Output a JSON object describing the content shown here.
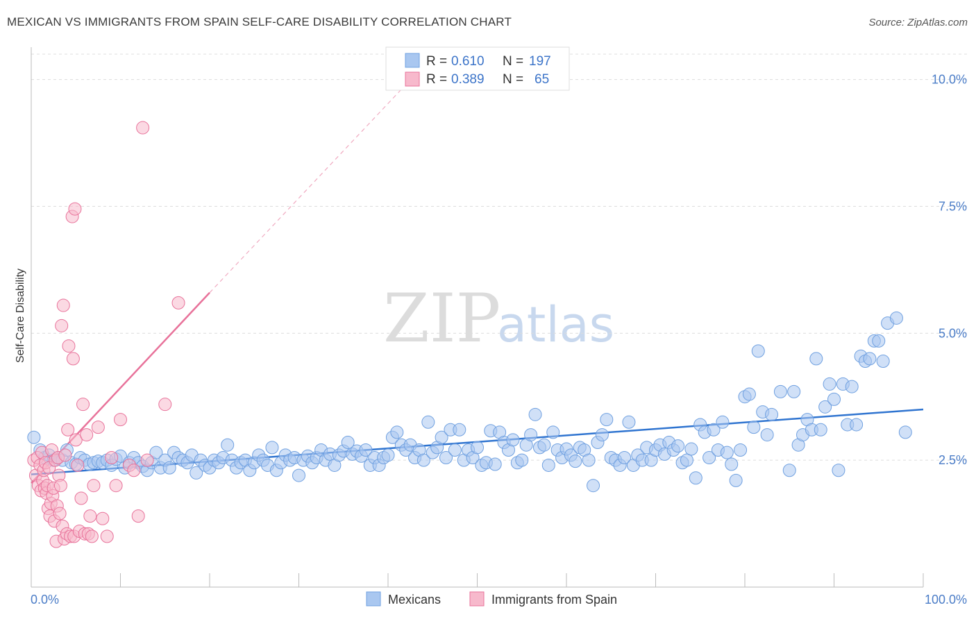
{
  "header": {
    "title": "MEXICAN VS IMMIGRANTS FROM SPAIN SELF-CARE DISABILITY CORRELATION CHART",
    "source": "Source: ZipAtlas.com"
  },
  "watermark": {
    "zip": "ZIP",
    "atlas": "atlas"
  },
  "legend_top": {
    "rows": [
      {
        "r_label": "R =",
        "r_value": "0.610",
        "n_label": "N =",
        "n_value": "197",
        "color": "#a9c7f0"
      },
      {
        "r_label": "R =",
        "r_value": "0.389",
        "n_label": "N =",
        "n_value": "65",
        "color": "#f7b9cc"
      }
    ]
  },
  "legend_bottom": [
    {
      "label": "Mexicans",
      "color": "#a9c7f0"
    },
    {
      "label": "Immigrants from Spain",
      "color": "#f7b9cc"
    }
  ],
  "chart_data": {
    "type": "scatter",
    "ylabel": "Self-Care Disability",
    "xlabel": "",
    "xlim": [
      0,
      100
    ],
    "ylim": [
      0,
      10.5
    ],
    "x_tick_labels": [
      "0.0%",
      "100.0%"
    ],
    "y_ticks": [
      2.5,
      5.0,
      7.5,
      10.0
    ],
    "y_tick_labels": [
      "2.5%",
      "5.0%",
      "7.5%",
      "10.0%"
    ],
    "grid": "horizontal dashed",
    "legend_placement": "top-center",
    "colors": {
      "mexicans": "#6fa0e0",
      "mexicans_fill": "#a9c7f0",
      "spain": "#e8729a",
      "spain_fill": "#f7b9cc",
      "trend_blue": "#2f74d0",
      "trend_pink": "#e8729a"
    },
    "series": [
      {
        "name": "Mexicans",
        "trend": {
          "x": [
            0,
            100
          ],
          "y": [
            2.22,
            3.5
          ]
        },
        "points": [
          [
            0.3,
            2.95
          ],
          [
            1.0,
            2.7
          ],
          [
            1.5,
            2.55
          ],
          [
            2.0,
            2.6
          ],
          [
            2.5,
            2.5
          ],
          [
            3.0,
            2.55
          ],
          [
            3.5,
            2.5
          ],
          [
            4.0,
            2.7
          ],
          [
            4.5,
            2.45
          ],
          [
            5.0,
            2.42
          ],
          [
            5.5,
            2.55
          ],
          [
            6.0,
            2.5
          ],
          [
            6.5,
            2.42
          ],
          [
            7.0,
            2.45
          ],
          [
            7.5,
            2.48
          ],
          [
            8.0,
            2.45
          ],
          [
            8.5,
            2.5
          ],
          [
            9.0,
            2.4
          ],
          [
            9.5,
            2.52
          ],
          [
            10.0,
            2.58
          ],
          [
            10.5,
            2.35
          ],
          [
            11.0,
            2.45
          ],
          [
            11.5,
            2.55
          ],
          [
            12.0,
            2.45
          ],
          [
            12.5,
            2.38
          ],
          [
            13.0,
            2.3
          ],
          [
            13.5,
            2.45
          ],
          [
            14.0,
            2.65
          ],
          [
            14.5,
            2.35
          ],
          [
            15.0,
            2.5
          ],
          [
            15.5,
            2.35
          ],
          [
            16.0,
            2.65
          ],
          [
            16.5,
            2.55
          ],
          [
            17.0,
            2.5
          ],
          [
            17.5,
            2.45
          ],
          [
            18.0,
            2.6
          ],
          [
            18.5,
            2.25
          ],
          [
            19.0,
            2.5
          ],
          [
            19.5,
            2.4
          ],
          [
            20.0,
            2.35
          ],
          [
            20.5,
            2.5
          ],
          [
            21.0,
            2.45
          ],
          [
            21.5,
            2.55
          ],
          [
            22.0,
            2.8
          ],
          [
            22.5,
            2.5
          ],
          [
            23.0,
            2.35
          ],
          [
            23.5,
            2.45
          ],
          [
            24.0,
            2.5
          ],
          [
            24.5,
            2.3
          ],
          [
            25.0,
            2.45
          ],
          [
            25.5,
            2.6
          ],
          [
            26.0,
            2.5
          ],
          [
            26.5,
            2.4
          ],
          [
            27.0,
            2.75
          ],
          [
            27.5,
            2.3
          ],
          [
            28.0,
            2.45
          ],
          [
            28.5,
            2.6
          ],
          [
            29.0,
            2.5
          ],
          [
            29.5,
            2.55
          ],
          [
            30.0,
            2.2
          ],
          [
            30.5,
            2.5
          ],
          [
            31.0,
            2.58
          ],
          [
            31.5,
            2.45
          ],
          [
            32.0,
            2.55
          ],
          [
            32.5,
            2.7
          ],
          [
            33.0,
            2.5
          ],
          [
            33.5,
            2.62
          ],
          [
            34.0,
            2.4
          ],
          [
            34.5,
            2.6
          ],
          [
            35.0,
            2.68
          ],
          [
            35.5,
            2.85
          ],
          [
            36.0,
            2.62
          ],
          [
            36.5,
            2.68
          ],
          [
            37.0,
            2.58
          ],
          [
            37.5,
            2.7
          ],
          [
            38.0,
            2.4
          ],
          [
            38.5,
            2.55
          ],
          [
            39.0,
            2.4
          ],
          [
            39.5,
            2.55
          ],
          [
            40.0,
            2.6
          ],
          [
            40.5,
            2.95
          ],
          [
            41.0,
            3.05
          ],
          [
            41.5,
            2.8
          ],
          [
            42.0,
            2.7
          ],
          [
            42.5,
            2.8
          ],
          [
            43.0,
            2.55
          ],
          [
            43.5,
            2.7
          ],
          [
            44.0,
            2.5
          ],
          [
            44.5,
            3.25
          ],
          [
            45.0,
            2.65
          ],
          [
            45.5,
            2.75
          ],
          [
            46.0,
            2.95
          ],
          [
            46.5,
            2.55
          ],
          [
            47.0,
            3.1
          ],
          [
            47.5,
            2.7
          ],
          [
            48.0,
            3.1
          ],
          [
            48.5,
            2.5
          ],
          [
            49.0,
            2.7
          ],
          [
            49.5,
            2.55
          ],
          [
            50.0,
            2.75
          ],
          [
            50.5,
            2.4
          ],
          [
            51.0,
            2.45
          ],
          [
            51.5,
            3.08
          ],
          [
            52.0,
            2.42
          ],
          [
            52.5,
            3.05
          ],
          [
            53.0,
            2.85
          ],
          [
            53.5,
            2.7
          ],
          [
            54.0,
            2.9
          ],
          [
            54.5,
            2.45
          ],
          [
            55.0,
            2.5
          ],
          [
            55.5,
            2.8
          ],
          [
            56.0,
            3.0
          ],
          [
            56.5,
            3.4
          ],
          [
            57.0,
            2.75
          ],
          [
            57.5,
            2.8
          ],
          [
            58.0,
            2.4
          ],
          [
            58.5,
            3.05
          ],
          [
            59.0,
            2.7
          ],
          [
            59.5,
            2.55
          ],
          [
            60.0,
            2.72
          ],
          [
            60.5,
            2.6
          ],
          [
            61.0,
            2.48
          ],
          [
            61.5,
            2.75
          ],
          [
            62.0,
            2.7
          ],
          [
            62.5,
            2.5
          ],
          [
            63.0,
            2.0
          ],
          [
            63.5,
            2.85
          ],
          [
            64.0,
            3.0
          ],
          [
            64.5,
            3.3
          ],
          [
            65.0,
            2.55
          ],
          [
            65.5,
            2.5
          ],
          [
            66.0,
            2.4
          ],
          [
            66.5,
            2.55
          ],
          [
            67.0,
            3.25
          ],
          [
            67.5,
            2.4
          ],
          [
            68.0,
            2.6
          ],
          [
            68.5,
            2.5
          ],
          [
            69.0,
            2.75
          ],
          [
            69.5,
            2.5
          ],
          [
            70.0,
            2.7
          ],
          [
            70.5,
            2.8
          ],
          [
            71.0,
            2.62
          ],
          [
            71.5,
            2.85
          ],
          [
            72.0,
            2.7
          ],
          [
            72.5,
            2.78
          ],
          [
            73.0,
            2.45
          ],
          [
            73.5,
            2.5
          ],
          [
            74.0,
            2.72
          ],
          [
            74.5,
            2.15
          ],
          [
            75.0,
            3.2
          ],
          [
            75.5,
            3.05
          ],
          [
            76.0,
            2.55
          ],
          [
            76.5,
            3.1
          ],
          [
            77.0,
            2.7
          ],
          [
            77.5,
            3.25
          ],
          [
            78.0,
            2.65
          ],
          [
            78.5,
            2.42
          ],
          [
            79.0,
            2.1
          ],
          [
            79.5,
            2.7
          ],
          [
            80.0,
            3.75
          ],
          [
            80.5,
            3.8
          ],
          [
            81.0,
            3.15
          ],
          [
            81.5,
            4.65
          ],
          [
            82.0,
            3.45
          ],
          [
            82.5,
            3.0
          ],
          [
            83.0,
            3.4
          ],
          [
            84.0,
            3.85
          ],
          [
            85.0,
            2.3
          ],
          [
            85.5,
            3.85
          ],
          [
            86.0,
            2.8
          ],
          [
            86.5,
            3.0
          ],
          [
            87.0,
            3.3
          ],
          [
            87.5,
            3.1
          ],
          [
            88.0,
            4.5
          ],
          [
            88.5,
            3.1
          ],
          [
            89.0,
            3.55
          ],
          [
            89.5,
            4.0
          ],
          [
            90.0,
            3.7
          ],
          [
            90.5,
            2.3
          ],
          [
            91.0,
            4.0
          ],
          [
            91.5,
            3.2
          ],
          [
            92.0,
            3.95
          ],
          [
            92.5,
            3.2
          ],
          [
            93.0,
            4.55
          ],
          [
            93.5,
            4.45
          ],
          [
            94.0,
            4.5
          ],
          [
            94.5,
            4.85
          ],
          [
            95.0,
            4.85
          ],
          [
            95.5,
            4.45
          ],
          [
            96.0,
            5.2
          ],
          [
            97.0,
            5.3
          ],
          [
            98.0,
            3.05
          ]
        ]
      },
      {
        "name": "Immigrants from Spain",
        "trend": {
          "x": [
            0,
            20
          ],
          "y": [
            2.05,
            5.8
          ],
          "dashed_extension": {
            "x": [
              20,
              42
            ],
            "y": [
              5.8,
              9.9
            ]
          }
        },
        "points": [
          [
            0.3,
            2.5
          ],
          [
            0.5,
            2.2
          ],
          [
            0.7,
            2.55
          ],
          [
            0.8,
            2.0
          ],
          [
            1.0,
            2.4
          ],
          [
            1.1,
            1.9
          ],
          [
            1.2,
            2.65
          ],
          [
            1.3,
            2.1
          ],
          [
            1.4,
            2.3
          ],
          [
            1.5,
            1.95
          ],
          [
            1.6,
            2.45
          ],
          [
            1.7,
            1.85
          ],
          [
            1.8,
            2.0
          ],
          [
            1.9,
            1.55
          ],
          [
            2.0,
            2.35
          ],
          [
            2.1,
            1.4
          ],
          [
            2.2,
            1.65
          ],
          [
            2.3,
            2.7
          ],
          [
            2.4,
            1.8
          ],
          [
            2.5,
            1.95
          ],
          [
            2.6,
            1.3
          ],
          [
            2.7,
            2.5
          ],
          [
            2.8,
            0.9
          ],
          [
            2.9,
            1.6
          ],
          [
            3.0,
            2.55
          ],
          [
            3.1,
            2.2
          ],
          [
            3.2,
            1.45
          ],
          [
            3.3,
            2.0
          ],
          [
            3.4,
            5.15
          ],
          [
            3.5,
            1.2
          ],
          [
            3.6,
            5.55
          ],
          [
            3.7,
            0.95
          ],
          [
            3.8,
            2.6
          ],
          [
            4.0,
            1.05
          ],
          [
            4.1,
            3.1
          ],
          [
            4.2,
            4.75
          ],
          [
            4.4,
            1.0
          ],
          [
            4.6,
            7.3
          ],
          [
            4.7,
            4.5
          ],
          [
            4.8,
            1.0
          ],
          [
            4.9,
            7.45
          ],
          [
            5.0,
            2.9
          ],
          [
            5.2,
            2.4
          ],
          [
            5.4,
            1.1
          ],
          [
            5.6,
            1.75
          ],
          [
            5.8,
            3.6
          ],
          [
            6.0,
            1.05
          ],
          [
            6.2,
            3.0
          ],
          [
            6.4,
            1.05
          ],
          [
            6.6,
            1.4
          ],
          [
            6.8,
            1.0
          ],
          [
            7.0,
            2.0
          ],
          [
            7.5,
            3.15
          ],
          [
            8.0,
            1.35
          ],
          [
            8.5,
            1.0
          ],
          [
            9.0,
            2.55
          ],
          [
            9.5,
            2.0
          ],
          [
            10.0,
            3.3
          ],
          [
            11.0,
            2.4
          ],
          [
            11.5,
            2.3
          ],
          [
            12.0,
            1.4
          ],
          [
            13.0,
            2.5
          ],
          [
            15.0,
            3.6
          ],
          [
            12.5,
            9.05
          ],
          [
            16.5,
            5.6
          ]
        ]
      }
    ]
  }
}
